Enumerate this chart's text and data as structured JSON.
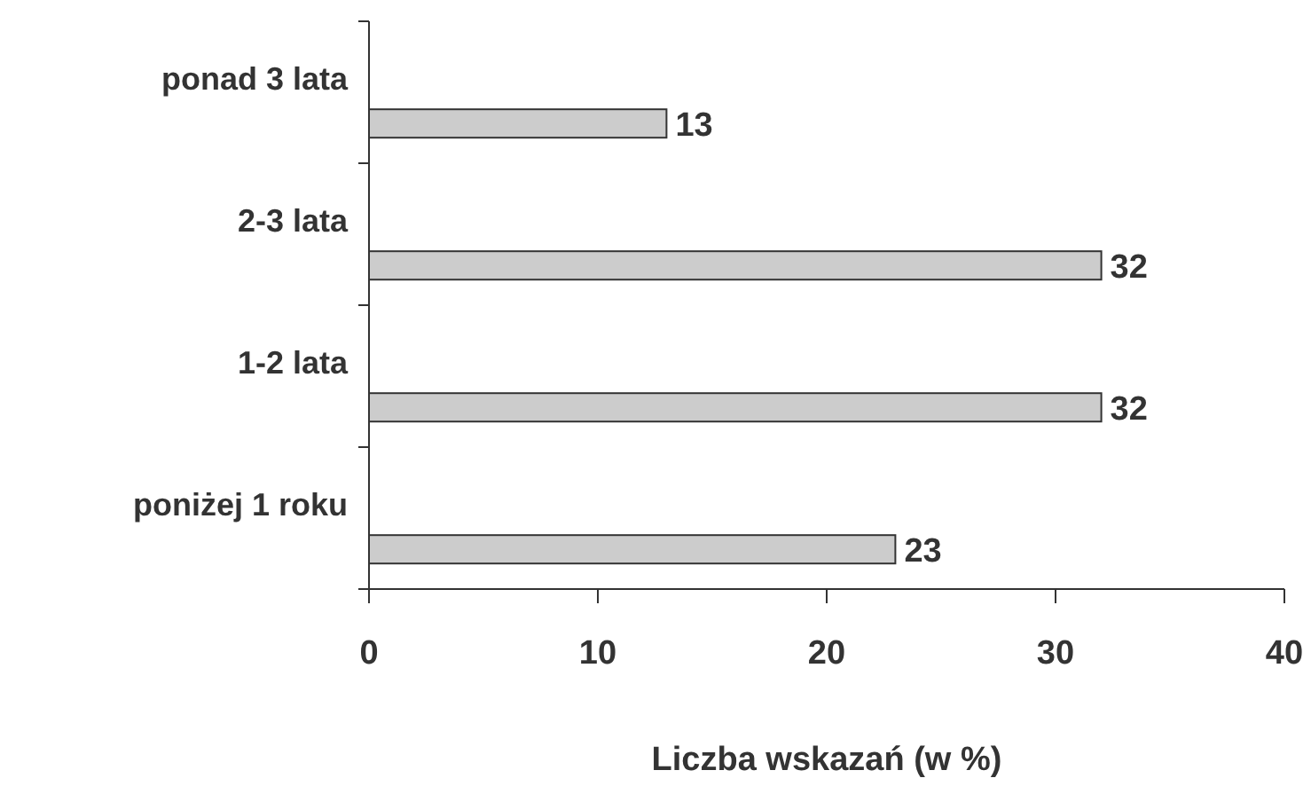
{
  "chart_data": {
    "type": "bar",
    "orientation": "horizontal",
    "xlabel": "Liczba wskazań (w %)",
    "categories": [
      "ponad 3 lata",
      "2-3 lata",
      "1-2 lata",
      "poniżej 1 roku"
    ],
    "values": [
      13,
      32,
      32,
      23
    ],
    "color": "#cccccc",
    "xlim": [
      0,
      40
    ],
    "xticks": [
      0,
      10,
      20,
      30,
      40
    ],
    "data_labels": true,
    "grid": false
  }
}
